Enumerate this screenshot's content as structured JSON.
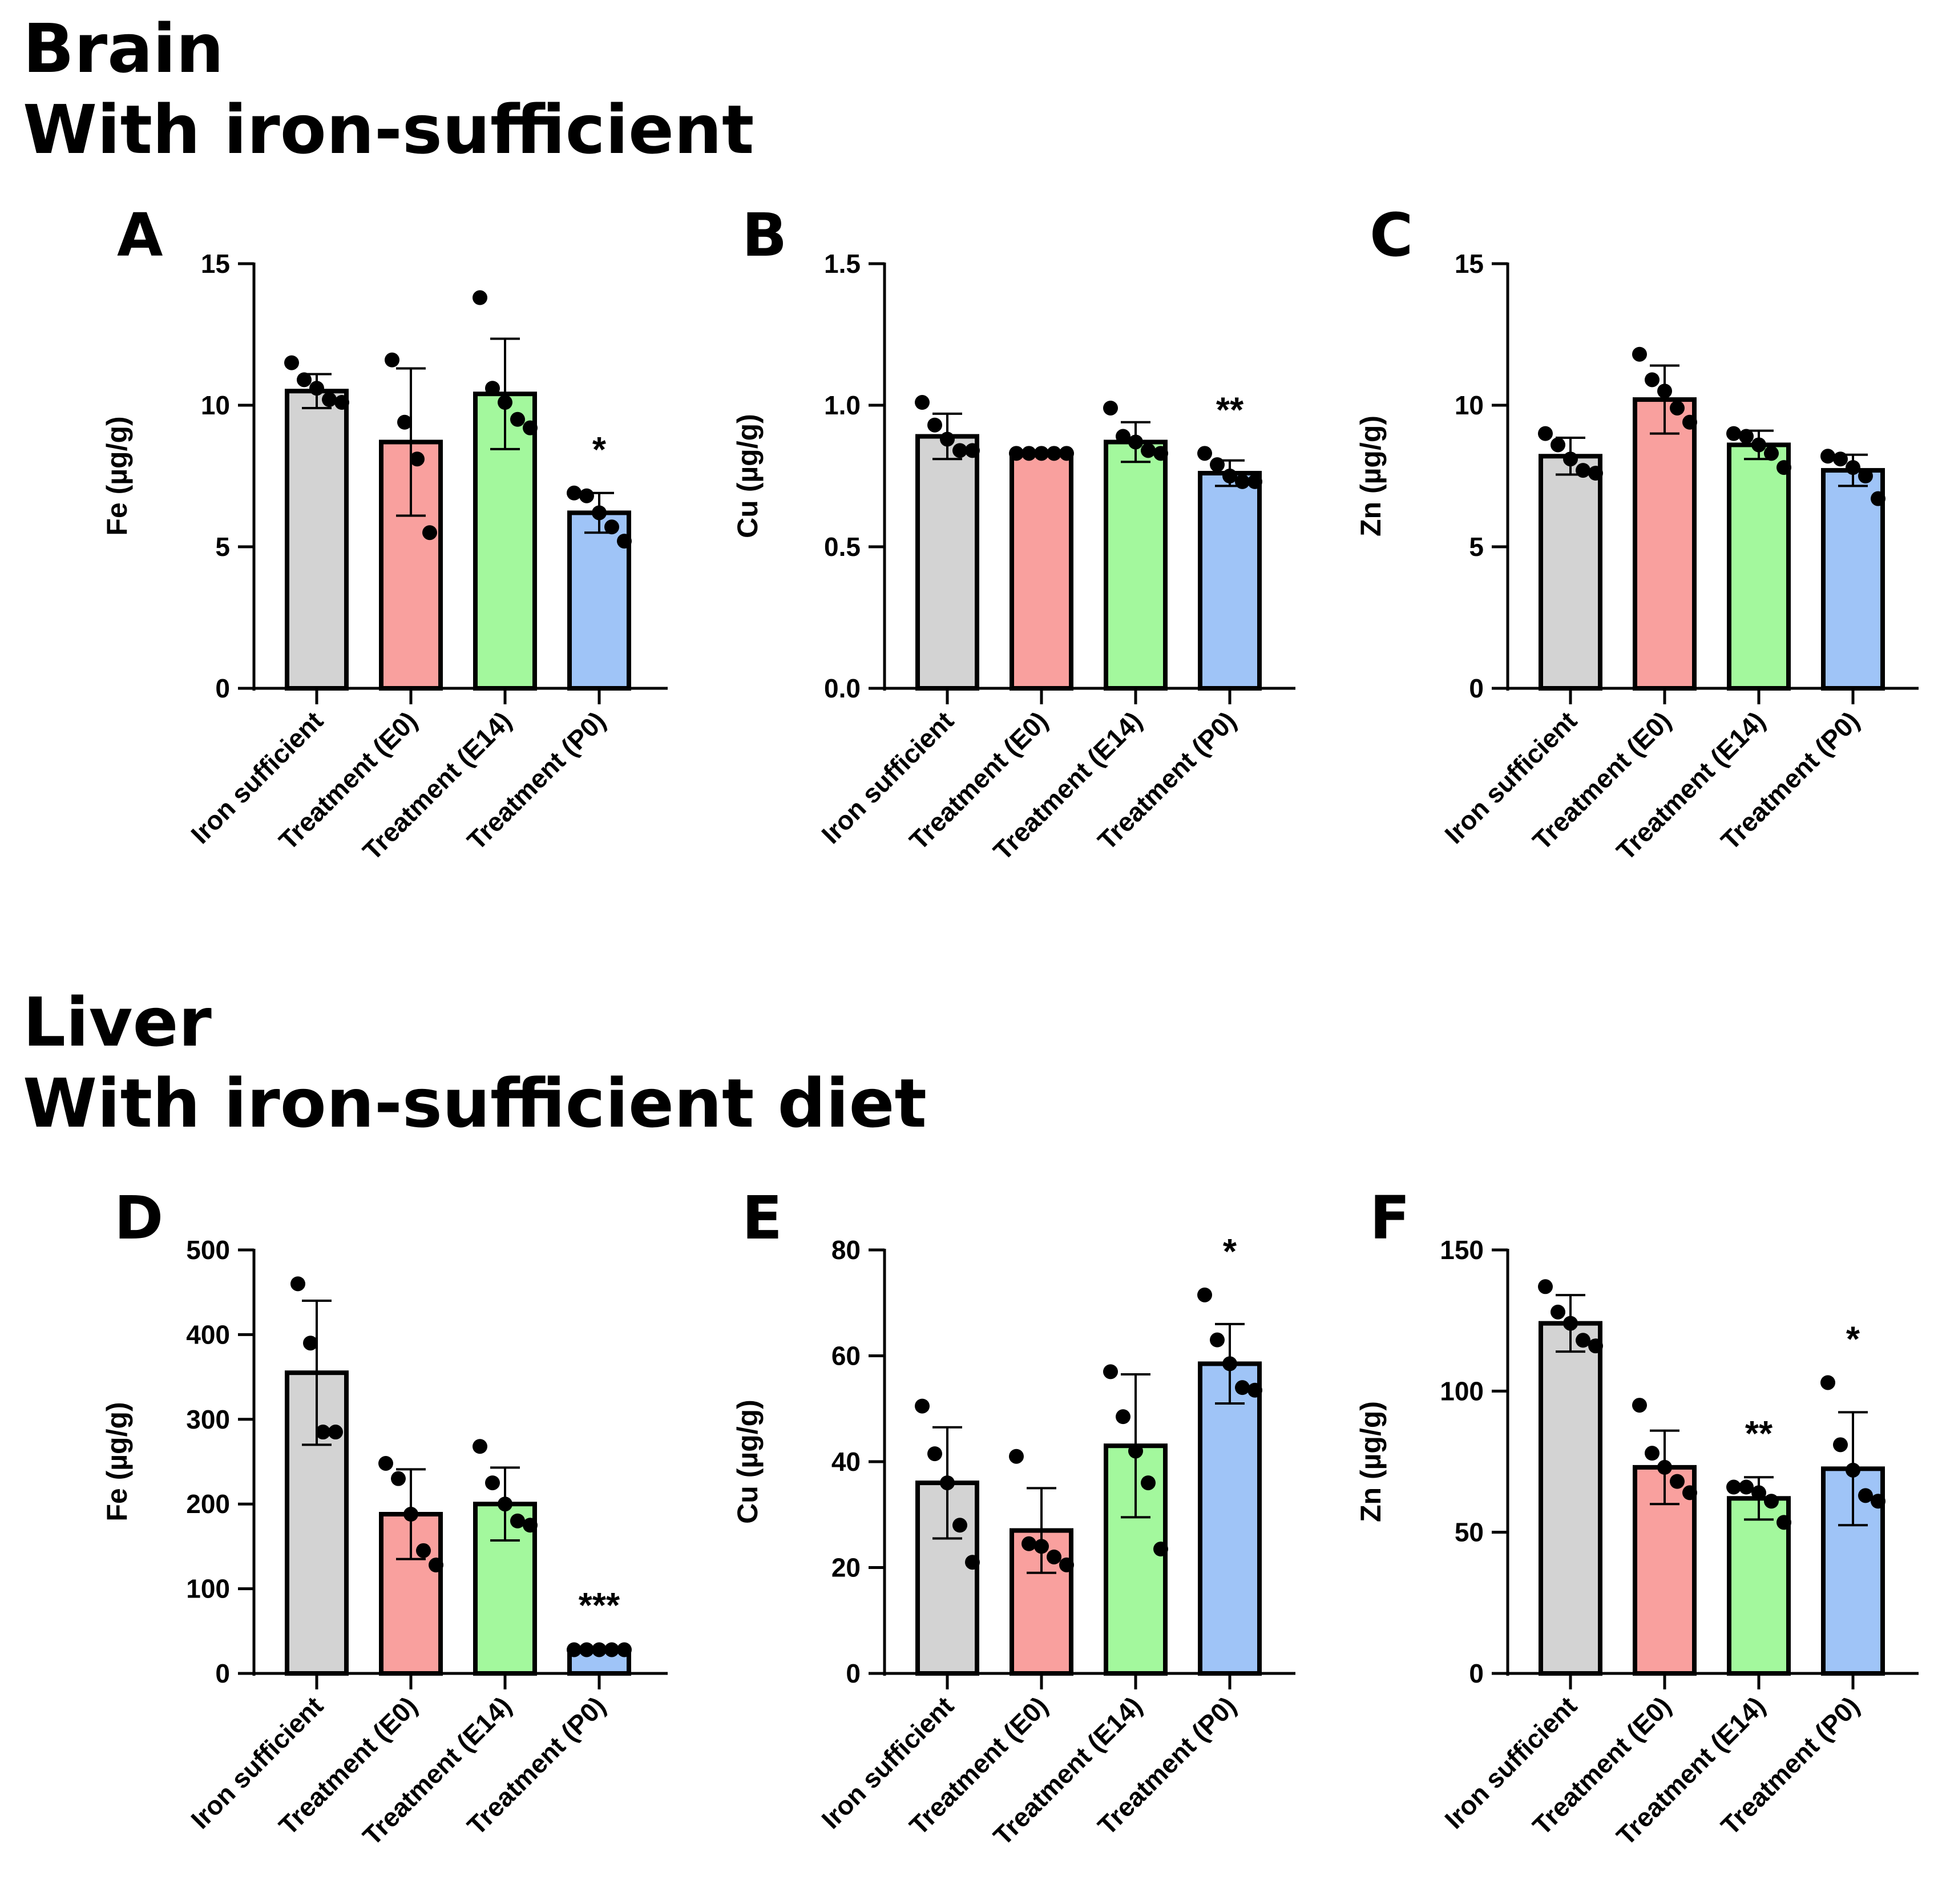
{
  "sections": {
    "brain": {
      "line1": "Brain",
      "line2": "With iron-sufficient"
    },
    "liver": {
      "line1": "Liver",
      "line2": "With iron-sufficient diet"
    }
  },
  "colors": {
    "iron_sufficient": "#d3d3d3",
    "treatment_e0": "#f9a09e",
    "treatment_e14": "#a3f89d",
    "treatment_p0": "#9fc4f7",
    "axis": "#000000",
    "points": "#000000"
  },
  "chart_data": [
    {
      "panel": "A",
      "type": "bar",
      "ylabel": "Fe (µg/g)",
      "ylim": [
        0,
        15
      ],
      "yticks": [
        0,
        5,
        10,
        15
      ],
      "ytick_labels": [
        "0",
        "5",
        "10",
        "15"
      ],
      "categories": [
        "Iron sufficient",
        "Treatment (E0)",
        "Treatment (E14)",
        "Treatment (P0)"
      ],
      "values": [
        10.5,
        8.7,
        10.4,
        6.2
      ],
      "errors": [
        0.6,
        2.6,
        1.95,
        0.7
      ],
      "points": [
        [
          11.5,
          10.9,
          10.6,
          10.2,
          10.1
        ],
        [
          11.6,
          9.4,
          8.1,
          5.5
        ],
        [
          13.8,
          10.6,
          10.1,
          9.5,
          9.2
        ],
        [
          6.9,
          6.8,
          6.2,
          5.7,
          5.2
        ]
      ],
      "significance": [
        "",
        "",
        "",
        "*"
      ]
    },
    {
      "panel": "B",
      "type": "bar",
      "ylabel": "Cu (µg/g)",
      "ylim": [
        0,
        1.5
      ],
      "yticks": [
        0,
        0.5,
        1.0,
        1.5
      ],
      "ytick_labels": [
        "0.0",
        "0.5",
        "1.0",
        "1.5"
      ],
      "categories": [
        "Iron sufficient",
        "Treatment (E0)",
        "Treatment (E14)",
        "Treatment (P0)"
      ],
      "values": [
        0.89,
        0.83,
        0.87,
        0.76
      ],
      "errors": [
        0.08,
        0.01,
        0.07,
        0.045
      ],
      "points": [
        [
          1.01,
          0.93,
          0.88,
          0.84,
          0.84
        ],
        [
          0.83,
          0.83,
          0.83,
          0.83,
          0.83
        ],
        [
          0.99,
          0.89,
          0.87,
          0.84,
          0.83
        ],
        [
          0.83,
          0.79,
          0.75,
          0.73,
          0.73
        ]
      ],
      "significance": [
        "",
        "",
        "",
        "**"
      ]
    },
    {
      "panel": "C",
      "type": "bar",
      "ylabel": "Zn (µg/g)",
      "ylim": [
        0,
        15
      ],
      "yticks": [
        0,
        5,
        10,
        15
      ],
      "ytick_labels": [
        "0",
        "5",
        "10",
        "15"
      ],
      "categories": [
        "Iron sufficient",
        "Treatment (E0)",
        "Treatment (E14)",
        "Treatment (P0)"
      ],
      "values": [
        8.2,
        10.2,
        8.6,
        7.7
      ],
      "errors": [
        0.65,
        1.2,
        0.5,
        0.55
      ],
      "points": [
        [
          9.0,
          8.6,
          8.1,
          7.7,
          7.6
        ],
        [
          11.8,
          10.9,
          10.5,
          9.9,
          9.4
        ],
        [
          9.0,
          8.9,
          8.6,
          8.3,
          7.8
        ],
        [
          8.2,
          8.1,
          7.8,
          7.5,
          6.7
        ]
      ],
      "significance": [
        "",
        "",
        "",
        ""
      ]
    },
    {
      "panel": "D",
      "type": "bar",
      "ylabel": "Fe (µg/g)",
      "ylim": [
        0,
        500
      ],
      "yticks": [
        0,
        100,
        200,
        300,
        400,
        500
      ],
      "ytick_labels": [
        "0",
        "100",
        "200",
        "300",
        "400",
        "500"
      ],
      "categories": [
        "Iron sufficient",
        "Treatment (E0)",
        "Treatment (E14)",
        "Treatment (P0)"
      ],
      "values": [
        355,
        188,
        200,
        27
      ],
      "errors": [
        85,
        53,
        43,
        2
      ],
      "points": [
        [
          460,
          390,
          285,
          285
        ],
        [
          248,
          230,
          188,
          145,
          128
        ],
        [
          268,
          225,
          200,
          180,
          175
        ],
        [
          28,
          28,
          28,
          28,
          28
        ]
      ],
      "significance": [
        "",
        "",
        "",
        "***"
      ]
    },
    {
      "panel": "E",
      "type": "bar",
      "ylabel": "Cu (µg/g)",
      "ylim": [
        0,
        80
      ],
      "yticks": [
        0,
        20,
        40,
        60,
        80
      ],
      "ytick_labels": [
        "0",
        "20",
        "40",
        "60",
        "80"
      ],
      "categories": [
        "Iron sufficient",
        "Treatment (E0)",
        "Treatment (E14)",
        "Treatment (P0)"
      ],
      "values": [
        36,
        27,
        43,
        58.5
      ],
      "errors": [
        10.5,
        8,
        13.5,
        7.5
      ],
      "points": [
        [
          50.5,
          41.5,
          36,
          28,
          21
        ],
        [
          41,
          24.5,
          24,
          22,
          20.5
        ],
        [
          57,
          48.5,
          42,
          36,
          23.5
        ],
        [
          71.5,
          63,
          58.5,
          54,
          53.5
        ]
      ],
      "significance": [
        "",
        "",
        "",
        "*"
      ]
    },
    {
      "panel": "F",
      "type": "bar",
      "ylabel": "Zn (µg/g)",
      "ylim": [
        0,
        150
      ],
      "yticks": [
        0,
        50,
        100,
        150
      ],
      "ytick_labels": [
        "0",
        "50",
        "100",
        "150"
      ],
      "categories": [
        "Iron sufficient",
        "Treatment (E0)",
        "Treatment (E14)",
        "Treatment (P0)"
      ],
      "values": [
        124,
        73,
        62,
        72.5
      ],
      "errors": [
        10,
        13,
        7.5,
        20
      ],
      "points": [
        [
          137,
          128,
          124,
          118,
          116
        ],
        [
          95,
          78,
          73,
          68,
          64
        ],
        [
          66,
          66,
          64,
          61,
          53.5
        ],
        [
          103,
          81,
          72,
          63,
          61
        ]
      ],
      "significance": [
        "",
        "",
        "**",
        "*"
      ]
    }
  ]
}
